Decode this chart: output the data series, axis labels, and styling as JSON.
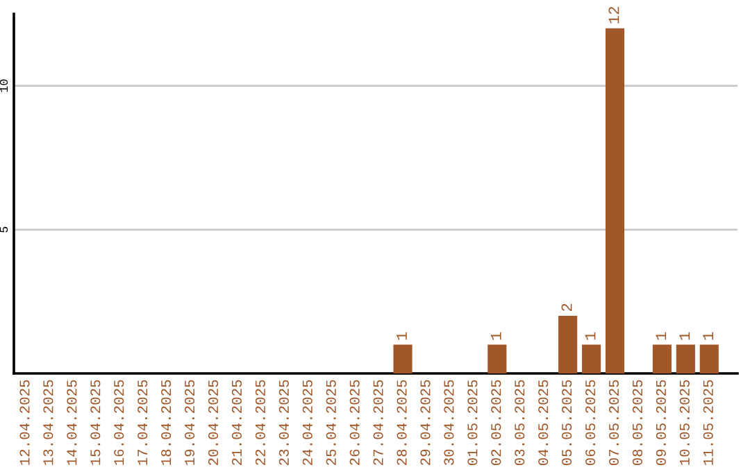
{
  "chart_data": {
    "type": "bar",
    "categories": [
      "12.04.2025",
      "13.04.2025",
      "14.04.2025",
      "15.04.2025",
      "16.04.2025",
      "17.04.2025",
      "18.04.2025",
      "19.04.2025",
      "20.04.2025",
      "21.04.2025",
      "22.04.2025",
      "23.04.2025",
      "24.04.2025",
      "25.04.2025",
      "26.04.2025",
      "27.04.2025",
      "28.04.2025",
      "29.04.2025",
      "30.04.2025",
      "01.05.2025",
      "02.05.2025",
      "03.05.2025",
      "04.05.2025",
      "05.05.2025",
      "06.05.2025",
      "07.05.2025",
      "08.05.2025",
      "09.05.2025",
      "10.05.2025",
      "11.05.2025"
    ],
    "values": [
      0,
      0,
      0,
      0,
      0,
      0,
      0,
      0,
      0,
      0,
      0,
      0,
      0,
      0,
      0,
      0,
      1,
      0,
      0,
      0,
      1,
      0,
      0,
      2,
      1,
      12,
      0,
      1,
      1,
      1
    ],
    "value_labels": [
      null,
      null,
      null,
      null,
      null,
      null,
      null,
      null,
      null,
      null,
      null,
      null,
      null,
      null,
      null,
      null,
      "1",
      null,
      null,
      null,
      "1",
      null,
      null,
      "2",
      "1",
      "12",
      null,
      "1",
      "1",
      "1"
    ],
    "color": "#a0572a",
    "ylim": [
      0,
      12.5
    ],
    "yticks": [
      5,
      10
    ],
    "grid": "y"
  }
}
